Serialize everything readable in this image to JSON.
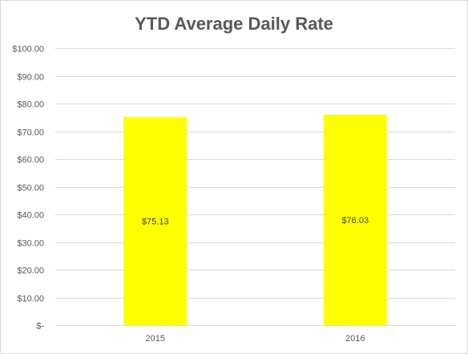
{
  "chart_data": {
    "type": "bar",
    "title": "YTD Average Daily Rate",
    "xlabel": "",
    "ylabel": "",
    "categories": [
      "2015",
      "2016"
    ],
    "values": [
      75.13,
      76.03
    ],
    "data_labels": [
      "$75.13",
      "$76.03"
    ],
    "ylim": [
      0,
      100
    ],
    "yticks": [
      0,
      10,
      20,
      30,
      40,
      50,
      60,
      70,
      80,
      90,
      100
    ],
    "ytick_labels": [
      "$-",
      "$10.00",
      "$20.00",
      "$30.00",
      "$40.00",
      "$50.00",
      "$60.00",
      "$70.00",
      "$80.00",
      "$90.00",
      "$100.00"
    ],
    "grid": true,
    "legend": "none",
    "bar_color": "#ffff00",
    "gridline_color": "#d9d9d9"
  }
}
